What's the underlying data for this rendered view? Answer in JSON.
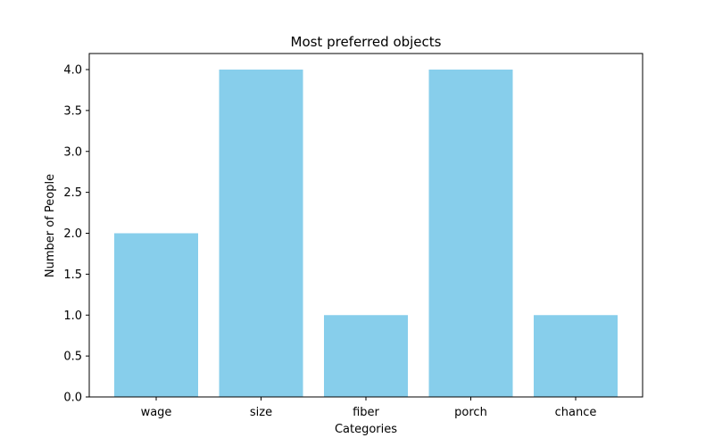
{
  "chart_data": {
    "type": "bar",
    "title": "Most preferred objects",
    "xlabel": "Categories",
    "ylabel": "Number of People",
    "categories": [
      "wage",
      "size",
      "fiber",
      "porch",
      "chance"
    ],
    "values": [
      2,
      4,
      1,
      4,
      1
    ],
    "ylim": [
      0,
      4.0
    ],
    "yticks": [
      0.0,
      0.5,
      1.0,
      1.5,
      2.0,
      2.5,
      3.0,
      3.5,
      4.0
    ],
    "ytick_labels": [
      "0.0",
      "0.5",
      "1.0",
      "1.5",
      "2.0",
      "2.5",
      "3.0",
      "3.5",
      "4.0"
    ],
    "grid": false,
    "bar_color": "#87ceeb"
  }
}
